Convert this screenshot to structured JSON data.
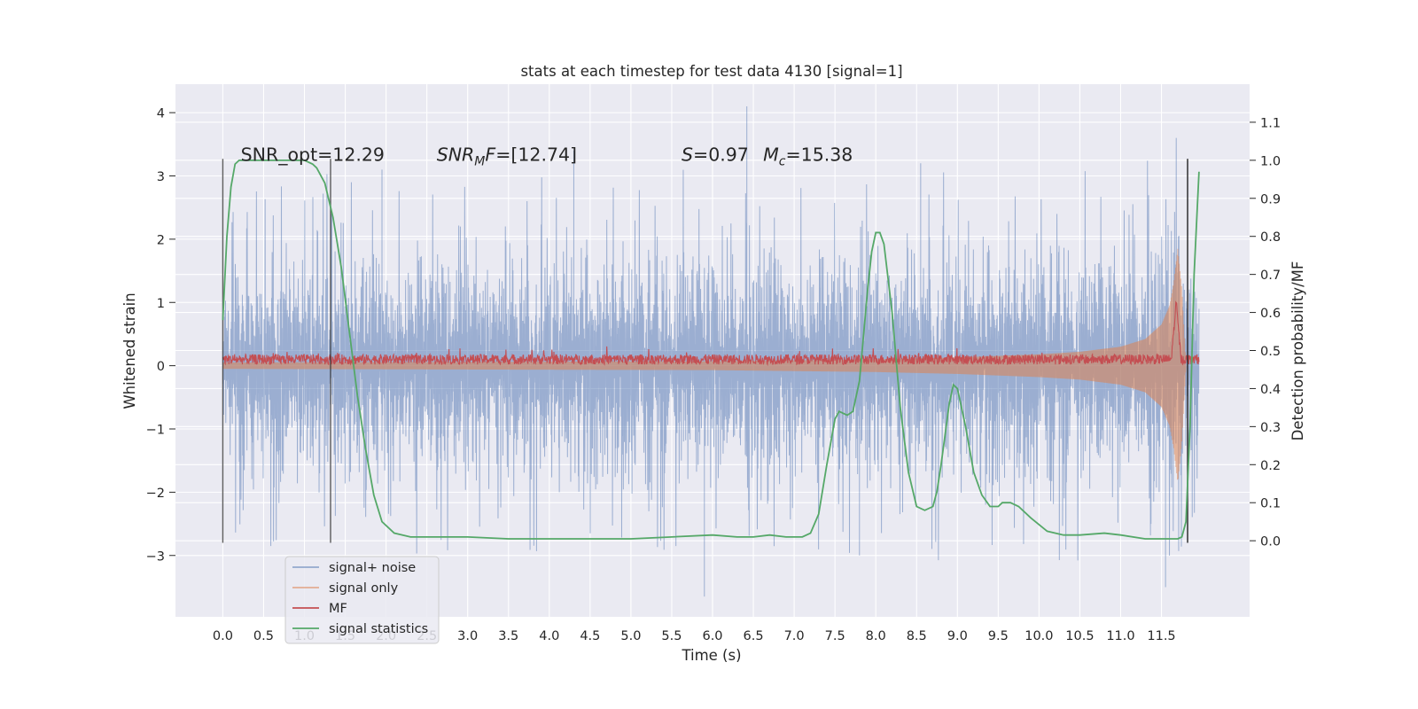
{
  "chart_data": {
    "type": "line",
    "title": "stats at each timestep for test data 4130 [signal=1]",
    "xlabel": "Time (s)",
    "ylabel": "Whitened strain",
    "ylabel_right": "Detection probability/MF",
    "xlim": [
      -0.58,
      12.58
    ],
    "ylim": [
      -3.97,
      4.45
    ],
    "ylim_right": [
      -0.2,
      1.2
    ],
    "xticks": [
      0.0,
      0.5,
      1.0,
      1.5,
      2.0,
      2.5,
      3.0,
      3.5,
      4.0,
      4.5,
      5.0,
      5.5,
      6.0,
      6.5,
      7.0,
      7.5,
      8.0,
      8.5,
      9.0,
      9.5,
      10.0,
      10.5,
      11.0,
      11.5
    ],
    "xtick_labels": [
      "0.0",
      "0.5",
      "1.0",
      "1.5",
      "2.0",
      "2.5",
      "3.0",
      "3.5",
      "4.0",
      "4.5",
      "5.0",
      "5.5",
      "6.0",
      "6.5",
      "7.0",
      "7.5",
      "8.0",
      "8.5",
      "9.0",
      "9.5",
      "10.0",
      "10.5",
      "11.0",
      "11.5"
    ],
    "yticks": [
      -3,
      -2,
      -1,
      0,
      1,
      2,
      3,
      4
    ],
    "ytick_labels": [
      "−3",
      "−2",
      "−1",
      "0",
      "1",
      "2",
      "3",
      "4"
    ],
    "yticks_right": [
      0.0,
      0.1,
      0.2,
      0.3,
      0.4,
      0.5,
      0.6,
      0.7,
      0.8,
      0.9,
      1.0,
      1.1
    ],
    "ytick_labels_right": [
      "0.0",
      "0.1",
      "0.2",
      "0.3",
      "0.4",
      "0.5",
      "0.6",
      "0.7",
      "0.8",
      "0.9",
      "1.0",
      "1.1"
    ],
    "grid": true,
    "legend_position": "lower-left",
    "annotations": [
      {
        "text": "SNR_opt=12.29",
        "x": 0.22,
        "y": 3.35
      },
      {
        "text": "SNR_MF=[12.74]",
        "x": 2.62,
        "y": 3.35
      },
      {
        "text": "S=0.97",
        "x": 5.62,
        "y": 3.35
      },
      {
        "text": "M_c=15.38",
        "x": 6.62,
        "y": 3.35
      }
    ],
    "detection_windows": [
      {
        "start": 0.0,
        "end": 1.32,
        "y_top": 3.27,
        "y_bottom": -2.8
      },
      {
        "start": 11.82,
        "end": 11.82,
        "y_top": 3.27,
        "y_bottom": -2.8
      }
    ],
    "series": [
      {
        "name": "signal+ noise",
        "color": "#4c72b0",
        "x_range": [
          0.0,
          11.96
        ],
        "envelope_max": 4.1,
        "envelope_min": -3.6,
        "typical_amplitude": 1.6
      },
      {
        "name": "signal only",
        "color": "#dd8452",
        "x": [
          0.0,
          6.0,
          8.0,
          9.0,
          10.0,
          10.5,
          11.0,
          11.3,
          11.5,
          11.6,
          11.65,
          11.7,
          11.75,
          11.8
        ],
        "amplitude": [
          0.05,
          0.07,
          0.1,
          0.13,
          0.18,
          0.22,
          0.3,
          0.42,
          0.65,
          0.95,
          1.3,
          1.85,
          1.2,
          0.0
        ]
      },
      {
        "name": "MF",
        "color": "#c44e52",
        "x_range": [
          0.0,
          11.96
        ],
        "baseline": 0.1,
        "band": 0.08,
        "peak": {
          "x": 11.68,
          "y": 1.0
        }
      },
      {
        "name": "signal statistics",
        "color": "#55a868",
        "axis": "right",
        "x": [
          0.0,
          0.05,
          0.1,
          0.15,
          0.2,
          0.3,
          0.5,
          0.8,
          1.0,
          1.1,
          1.15,
          1.25,
          1.35,
          1.45,
          1.55,
          1.65,
          1.75,
          1.85,
          1.95,
          2.1,
          2.3,
          2.6,
          3.0,
          3.5,
          4.0,
          4.5,
          5.0,
          5.5,
          6.0,
          6.3,
          6.5,
          6.7,
          6.9,
          7.1,
          7.2,
          7.3,
          7.4,
          7.5,
          7.55,
          7.65,
          7.72,
          7.8,
          7.9,
          7.95,
          8.0,
          8.05,
          8.1,
          8.2,
          8.3,
          8.4,
          8.5,
          8.6,
          8.7,
          8.75,
          8.8,
          8.9,
          8.95,
          9.0,
          9.1,
          9.2,
          9.3,
          9.4,
          9.5,
          9.55,
          9.65,
          9.75,
          9.9,
          10.1,
          10.3,
          10.5,
          10.8,
          11.0,
          11.3,
          11.6,
          11.7,
          11.75,
          11.8,
          11.85,
          11.9,
          11.96
        ],
        "values": [
          0.58,
          0.8,
          0.93,
          0.99,
          1.0,
          1.0,
          1.0,
          1.0,
          1.0,
          0.99,
          0.98,
          0.94,
          0.85,
          0.72,
          0.55,
          0.38,
          0.24,
          0.12,
          0.05,
          0.02,
          0.01,
          0.01,
          0.01,
          0.005,
          0.005,
          0.005,
          0.005,
          0.01,
          0.015,
          0.01,
          0.01,
          0.015,
          0.01,
          0.01,
          0.02,
          0.07,
          0.2,
          0.32,
          0.34,
          0.33,
          0.34,
          0.42,
          0.66,
          0.76,
          0.81,
          0.81,
          0.78,
          0.6,
          0.35,
          0.18,
          0.09,
          0.08,
          0.09,
          0.13,
          0.2,
          0.36,
          0.41,
          0.4,
          0.3,
          0.18,
          0.12,
          0.09,
          0.09,
          0.1,
          0.1,
          0.09,
          0.06,
          0.025,
          0.015,
          0.015,
          0.02,
          0.015,
          0.005,
          0.005,
          0.005,
          0.01,
          0.05,
          0.3,
          0.7,
          0.97
        ]
      }
    ]
  }
}
